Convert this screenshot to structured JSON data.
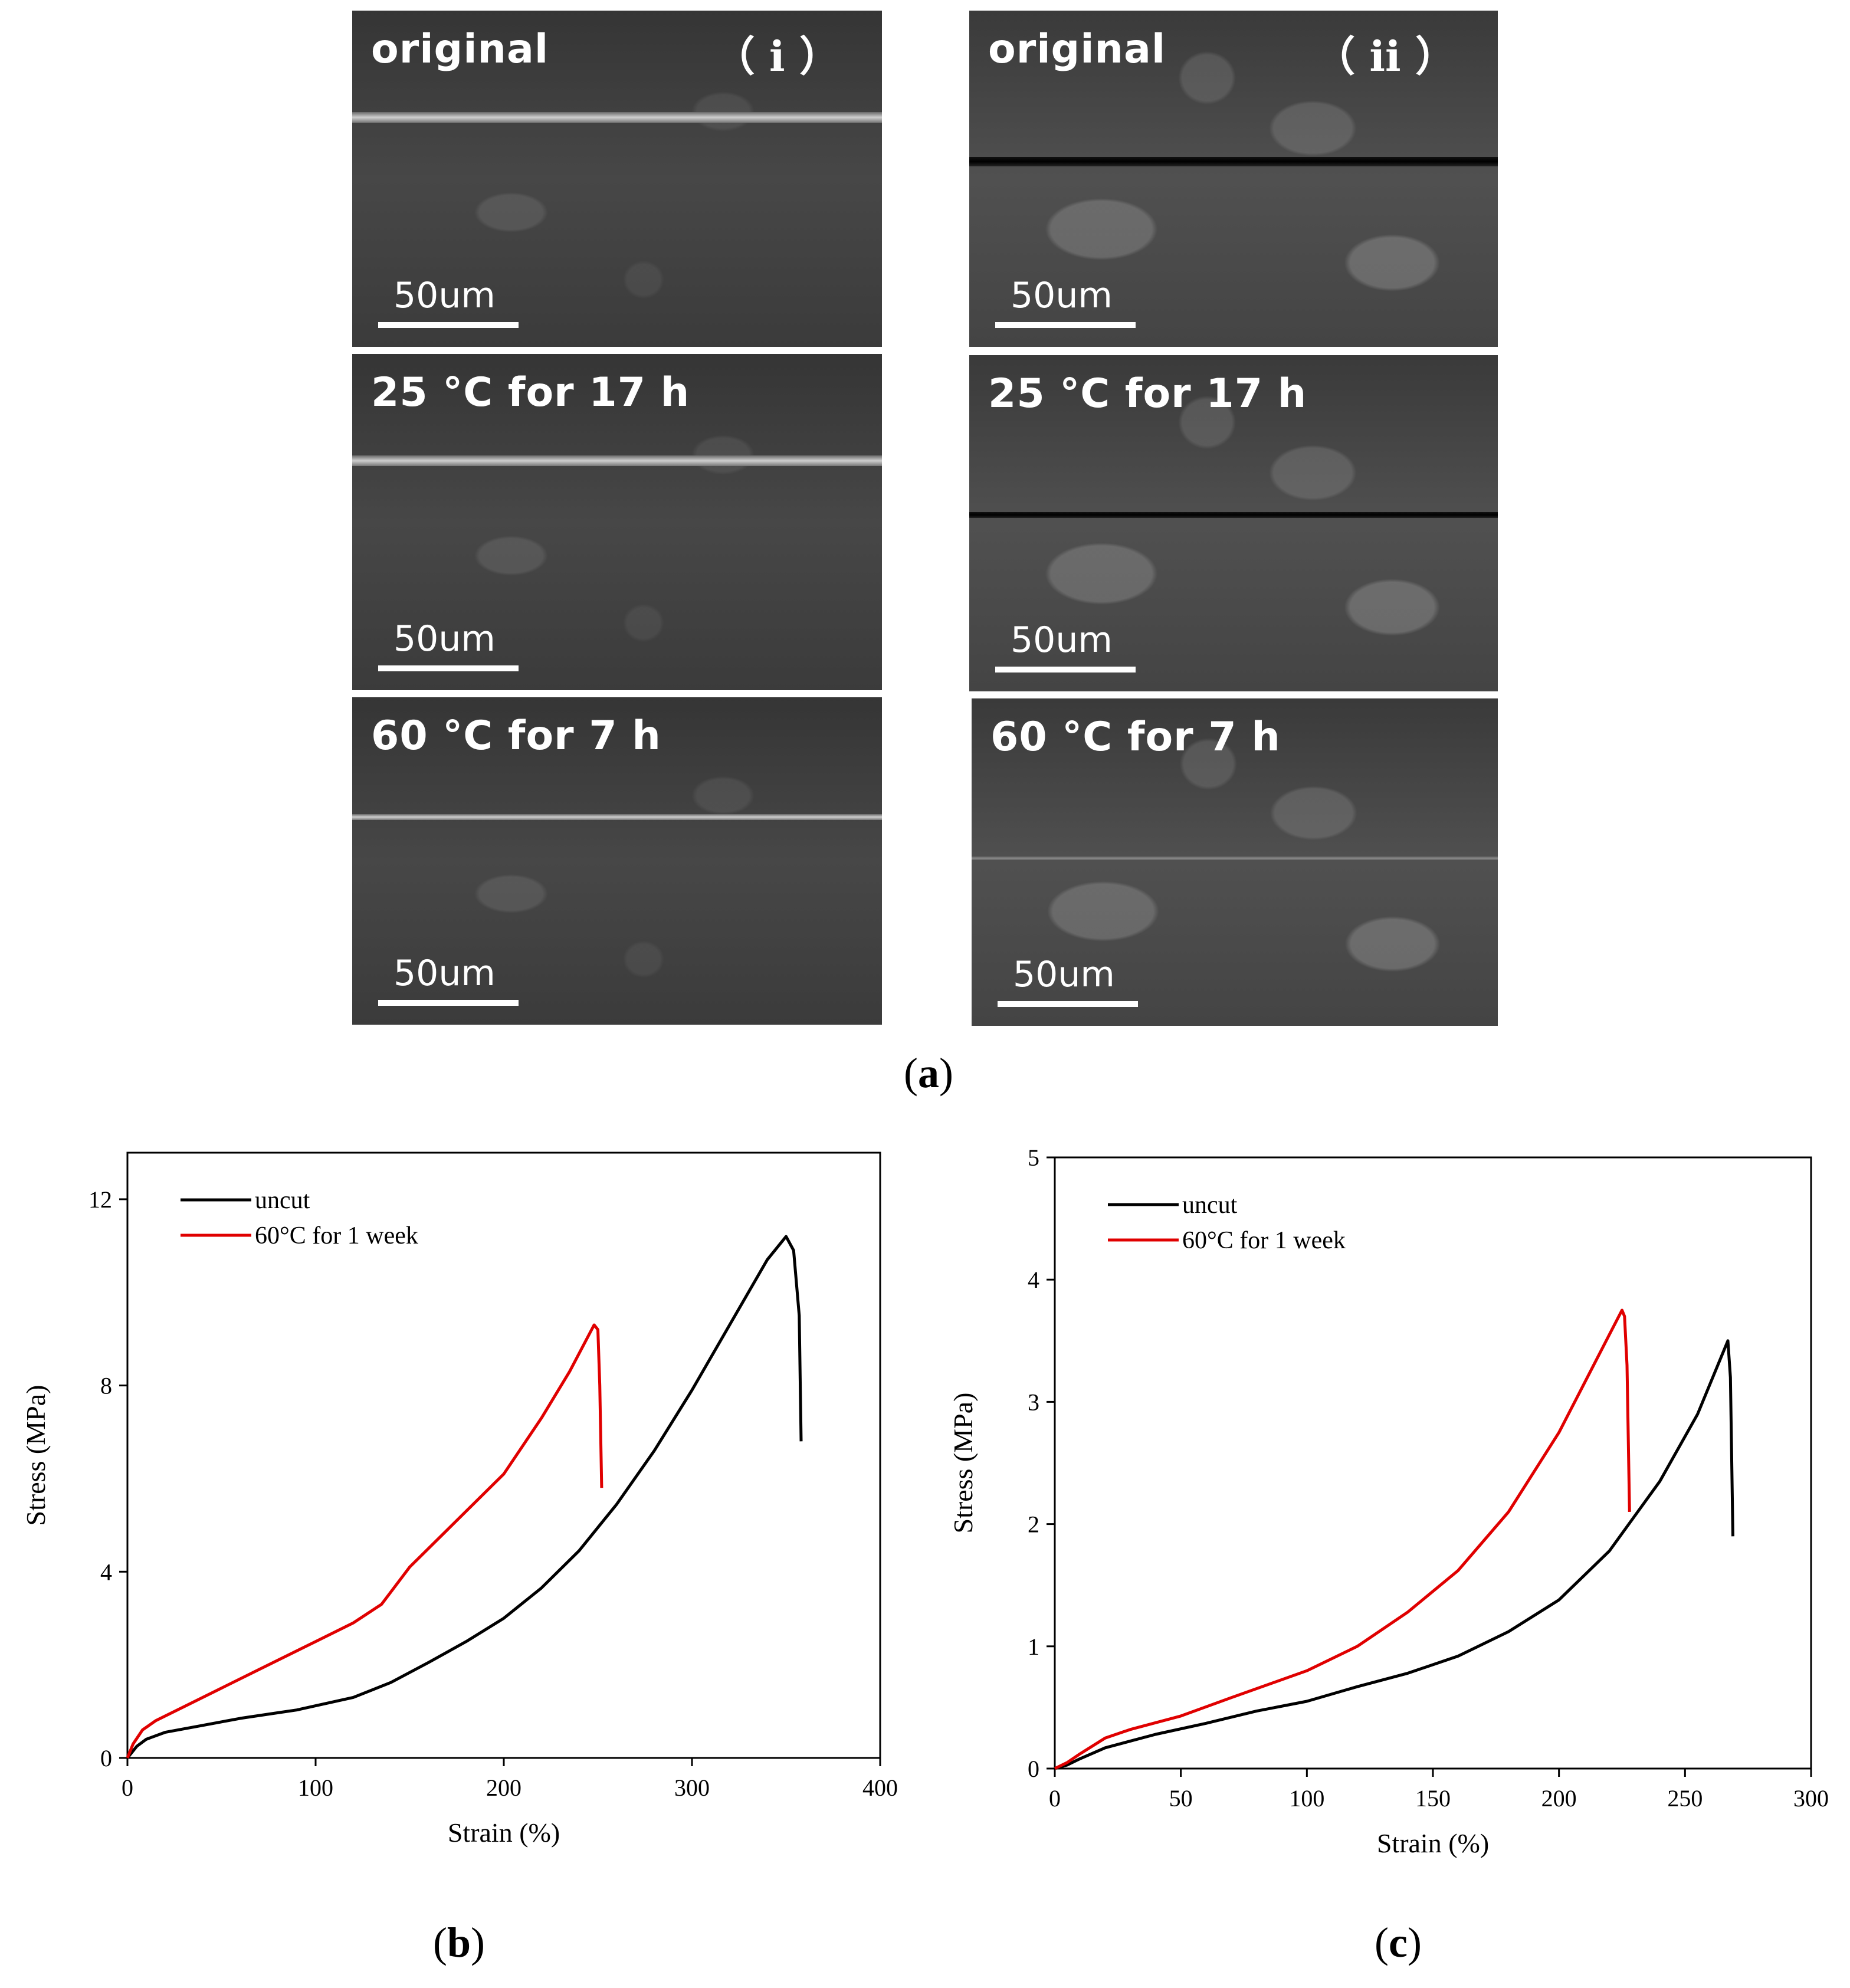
{
  "panel_a": {
    "caption_letter": "a",
    "columns": [
      {
        "roman": "（ i ）",
        "images": [
          {
            "label": "original",
            "scale_bar": "50um"
          },
          {
            "label": "25 °C for 17 h",
            "scale_bar": "50um"
          },
          {
            "label": "60 °C for 7 h",
            "scale_bar": "50um"
          }
        ]
      },
      {
        "roman": "（ ii ）",
        "images": [
          {
            "label": "original",
            "scale_bar": "50um"
          },
          {
            "label": "25 °C for 17 h",
            "scale_bar": "50um"
          },
          {
            "label": "60 °C for 7 h",
            "scale_bar": "50um"
          }
        ]
      }
    ]
  },
  "captions": {
    "b": "b",
    "c": "c"
  },
  "chart_data": [
    {
      "type": "line",
      "panel": "b",
      "xlabel": "Strain (%)",
      "ylabel": "Stress (MPa)",
      "xlim": [
        0,
        400
      ],
      "ylim": [
        0,
        13
      ],
      "xticks": [
        0,
        100,
        200,
        300,
        400
      ],
      "yticks": [
        0,
        4,
        8,
        12
      ],
      "legend_position": "top-left",
      "series": [
        {
          "name": "uncut",
          "color": "#000000",
          "x": [
            0,
            5,
            10,
            20,
            40,
            60,
            80,
            90,
            100,
            120,
            140,
            160,
            180,
            200,
            220,
            240,
            260,
            280,
            300,
            320,
            340,
            350,
            354,
            357,
            358
          ],
          "y": [
            0,
            0.25,
            0.4,
            0.55,
            0.7,
            0.85,
            0.97,
            1.03,
            1.12,
            1.3,
            1.62,
            2.05,
            2.5,
            3.0,
            3.65,
            4.45,
            5.45,
            6.6,
            7.9,
            9.3,
            10.7,
            11.2,
            10.9,
            9.5,
            6.8
          ]
        },
        {
          "name": "60°C for 1 week",
          "color": "#e00000",
          "x": [
            0,
            3,
            8,
            15,
            30,
            50,
            70,
            100,
            120,
            135,
            150,
            170,
            200,
            220,
            235,
            248,
            250,
            251,
            252
          ],
          "y": [
            0,
            0.3,
            0.6,
            0.8,
            1.1,
            1.5,
            1.9,
            2.5,
            2.9,
            3.3,
            4.1,
            4.9,
            6.1,
            7.3,
            8.3,
            9.3,
            9.2,
            8.0,
            5.8
          ]
        }
      ]
    },
    {
      "type": "line",
      "panel": "c",
      "xlabel": "Strain (%)",
      "ylabel": "Stress (MPa)",
      "xlim": [
        0,
        300
      ],
      "ylim": [
        0,
        5
      ],
      "xticks": [
        0,
        50,
        100,
        150,
        200,
        250,
        300
      ],
      "yticks": [
        0,
        1,
        2,
        3,
        4,
        5
      ],
      "legend_position": "top-left",
      "series": [
        {
          "name": "uncut",
          "color": "#000000",
          "x": [
            0,
            5,
            10,
            20,
            40,
            60,
            80,
            100,
            120,
            140,
            160,
            180,
            200,
            220,
            240,
            255,
            263,
            267,
            268,
            269
          ],
          "y": [
            0,
            0.03,
            0.08,
            0.17,
            0.28,
            0.37,
            0.47,
            0.55,
            0.67,
            0.78,
            0.92,
            1.12,
            1.38,
            1.78,
            2.35,
            2.9,
            3.3,
            3.5,
            3.2,
            1.9
          ]
        },
        {
          "name": "60°C for 1 week",
          "color": "#e00000",
          "x": [
            0,
            5,
            10,
            20,
            30,
            50,
            70,
            100,
            120,
            140,
            160,
            180,
            200,
            210,
            220,
            225,
            226,
            227,
            228
          ],
          "y": [
            0,
            0.05,
            0.12,
            0.25,
            0.32,
            0.43,
            0.58,
            0.8,
            1.0,
            1.28,
            1.62,
            2.1,
            2.75,
            3.15,
            3.55,
            3.75,
            3.7,
            3.3,
            2.1
          ]
        }
      ]
    }
  ]
}
